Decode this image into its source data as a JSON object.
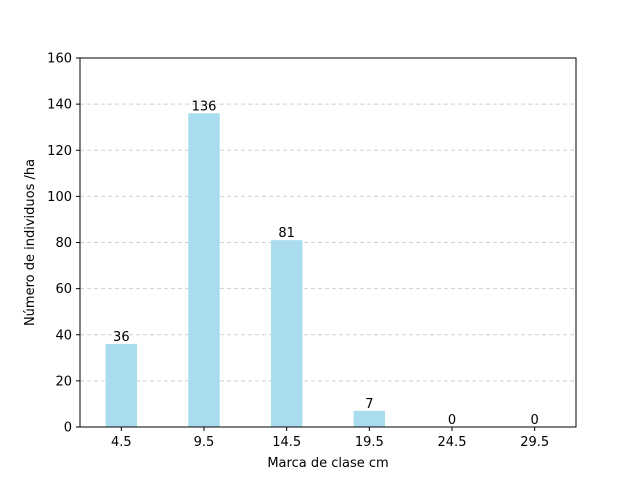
{
  "chart_data": {
    "type": "bar",
    "categories": [
      "4.5",
      "9.5",
      "14.5",
      "19.5",
      "24.5",
      "29.5"
    ],
    "values": [
      36,
      136,
      81,
      7,
      0,
      0
    ],
    "data_labels": [
      "36",
      "136",
      "81",
      "7",
      "0",
      "0"
    ],
    "title": "",
    "xlabel": "Marca de clase cm",
    "ylabel": "Número de individuos /ha",
    "ylim": [
      0,
      160
    ],
    "yticks": [
      0,
      20,
      40,
      60,
      80,
      100,
      120,
      140,
      160
    ],
    "ytick_labels": [
      "0",
      "20",
      "40",
      "60",
      "80",
      "100",
      "120",
      "140",
      "160"
    ],
    "grid": "y-dashed",
    "legend": "none",
    "colors": {
      "bar": "#a8dcee",
      "grid": "#d0d0d0",
      "axis": "#000000"
    }
  }
}
